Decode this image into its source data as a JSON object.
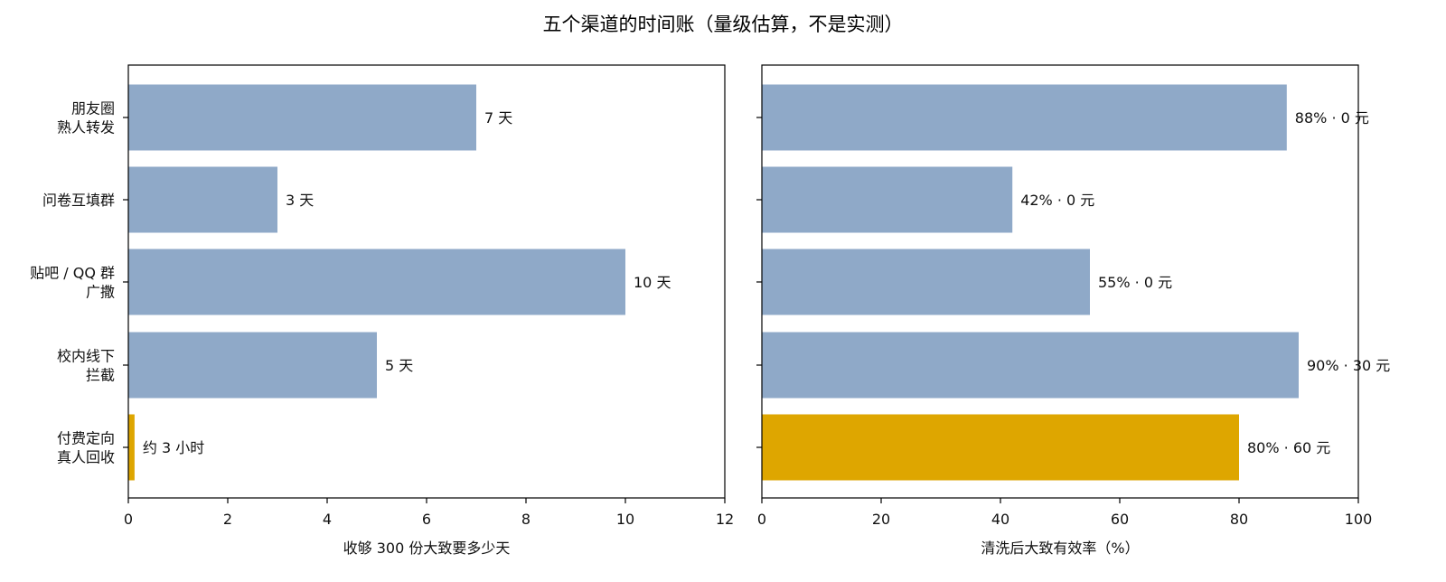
{
  "title": "五个渠道的时间账（量级估算，不是实测）",
  "colors": {
    "default_bar": "#8fa9c8",
    "highlight_bar": "#dea600",
    "axis": "#000000",
    "text": "#111111"
  },
  "categories": [
    [
      "朋友圈",
      "熟人转发"
    ],
    [
      "问卷互填群"
    ],
    [
      "贴吧 / QQ 群",
      "广撒"
    ],
    [
      "校内线下",
      "拦截"
    ],
    [
      "付费定向",
      "真人回收"
    ]
  ],
  "chart_data": [
    {
      "type": "bar",
      "orientation": "horizontal",
      "xlabel": "收够 300 份大致要多少天",
      "xlim": [
        0,
        12
      ],
      "xticks": [
        0,
        2,
        4,
        6,
        8,
        10,
        12
      ],
      "categories": [
        "朋友圈 熟人转发",
        "问卷互填群",
        "贴吧 / QQ 群 广撒",
        "校内线下 拦截",
        "付费定向 真人回收"
      ],
      "values": [
        7,
        3,
        10,
        5,
        0.125
      ],
      "data_labels": [
        "7 天",
        "3 天",
        "10 天",
        "5 天",
        "约 3 小时"
      ],
      "highlight_index": 4
    },
    {
      "type": "bar",
      "orientation": "horizontal",
      "xlabel": "清洗后大致有效率（%）",
      "xlim": [
        0,
        100
      ],
      "xticks": [
        0,
        20,
        40,
        60,
        80,
        100
      ],
      "categories": [
        "朋友圈 熟人转发",
        "问卷互填群",
        "贴吧 / QQ 群 广撒",
        "校内线下 拦截",
        "付费定向 真人回收"
      ],
      "values": [
        88,
        42,
        55,
        90,
        80
      ],
      "data_labels": [
        "88% · 0 元",
        "42% · 0 元",
        "55% · 0 元",
        "90% · 30 元",
        "80% · 60 元"
      ],
      "highlight_index": 4
    }
  ]
}
